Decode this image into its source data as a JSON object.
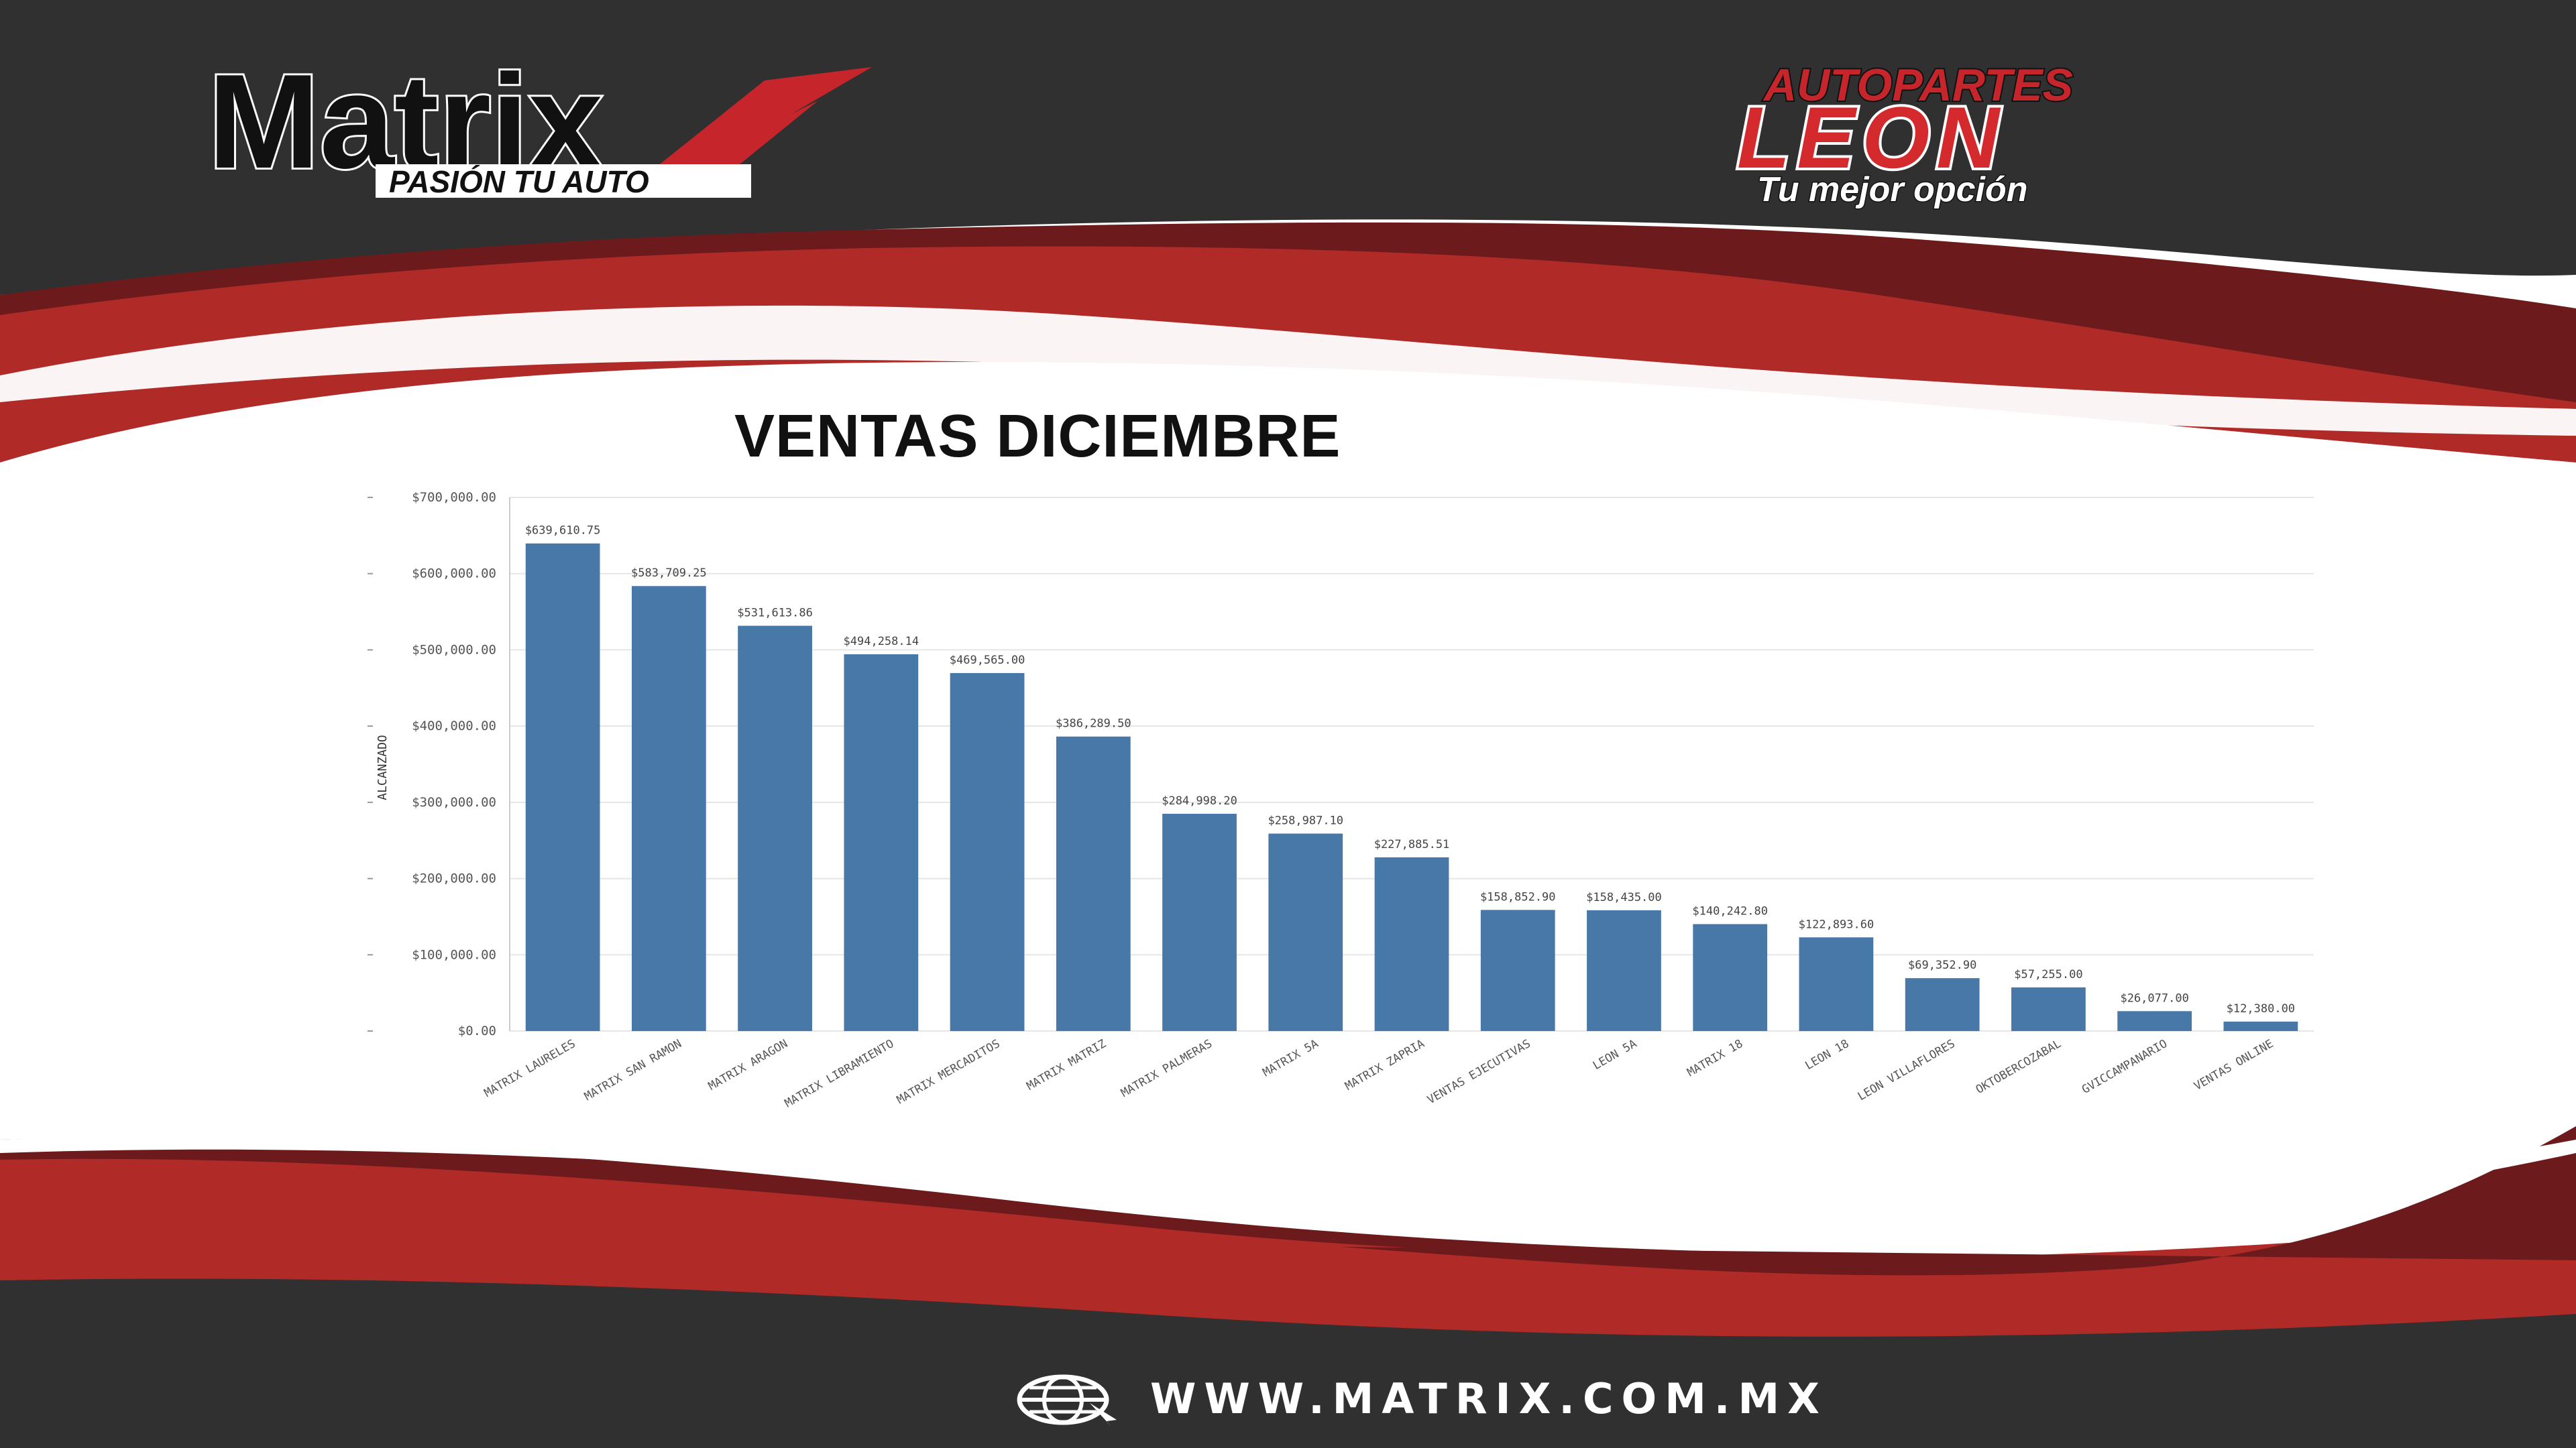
{
  "slide": {
    "title": "VENTAS DICIEMBRE",
    "footer_url": "WWW.MATRIX.COM.MX"
  },
  "logos": {
    "matrix": {
      "name": "Matrix",
      "tagline": "PASIÓN TU AUTO"
    },
    "leon": {
      "top": "AUTOPARTES",
      "name": "LEON",
      "tagline": "Tu mejor opción"
    }
  },
  "colors": {
    "bar": "#4878a8",
    "dark_bg": "#303030",
    "red": "#b02a28",
    "dark_red": "#6d1a1d",
    "grid": "#e6e6e6"
  },
  "chart_data": {
    "type": "bar",
    "title": "VENTAS DICIEMBRE",
    "ylabel": "ALCANZADO",
    "xlabel": "",
    "ylim": [
      0,
      700000
    ],
    "yticks": [
      0,
      100000,
      200000,
      300000,
      400000,
      500000,
      600000,
      700000
    ],
    "ytick_labels": [
      "$0.00",
      "$100,000.00",
      "$200,000.00",
      "$300,000.00",
      "$400,000.00",
      "$500,000.00",
      "$600,000.00",
      "$700,000.00"
    ],
    "grid": true,
    "legend": "none",
    "categories": [
      "MATRIX LAURELES",
      "MATRIX SAN RAMON",
      "MATRIX ARAGON",
      "MATRIX LIBRAMIENTO",
      "MATRIX MERCADITOS",
      "MATRIX MATRIZ",
      "MATRIX PALMERAS",
      "MATRIX 5A",
      "MATRIX ZAPRIA",
      "VENTAS EJECUTIVAS",
      "LEON 5A",
      "MATRIX 18",
      "LEON 18",
      "LEON VILLAFLORES",
      "OKTOBERCOZABAL",
      "GVICCAMPANARIO",
      "VENTAS ONLINE"
    ],
    "values": [
      639610.75,
      583709.25,
      531613.86,
      494258.14,
      469565.0,
      386289.5,
      284998.2,
      258987.1,
      227885.51,
      158852.9,
      158435.0,
      140242.8,
      122893.6,
      69352.9,
      57255.0,
      26077.0,
      12380.0
    ],
    "value_labels": [
      "$639,610.75",
      "$583,709.25",
      "$531,613.86",
      "$494,258.14",
      "$469,565.00",
      "$386,289.50",
      "$284,998.20",
      "$258,987.10",
      "$227,885.51",
      "$158,852.90",
      "$158,435.00",
      "$140,242.80",
      "$122,893.60",
      "$69,352.90",
      "$57,255.00",
      "$26,077.00",
      "$12,380.00"
    ]
  }
}
